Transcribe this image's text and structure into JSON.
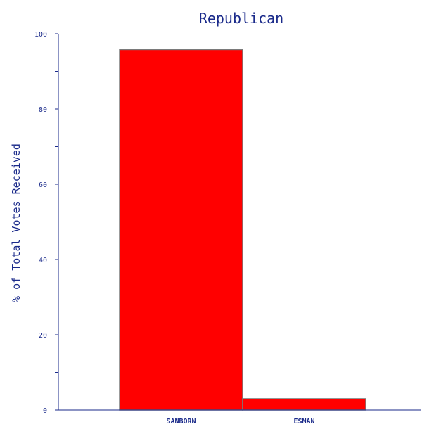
{
  "chart_data": {
    "type": "bar",
    "title": "Republican",
    "xlabel": "",
    "ylabel": "% of Total Votes Received",
    "categories": [
      "SANBORN",
      "ESMAN"
    ],
    "values": [
      95.8,
      3.0
    ],
    "ylim": [
      0,
      100
    ],
    "yticks": [
      "0",
      "20",
      "40",
      "60",
      "80",
      "100"
    ],
    "grid": false,
    "legend": "none"
  },
  "colors": {
    "bar_fill": "#ff0000",
    "bar_stroke": "#7a7a7a",
    "axis": "#1a2a8a",
    "text": "#1a2a8a"
  }
}
